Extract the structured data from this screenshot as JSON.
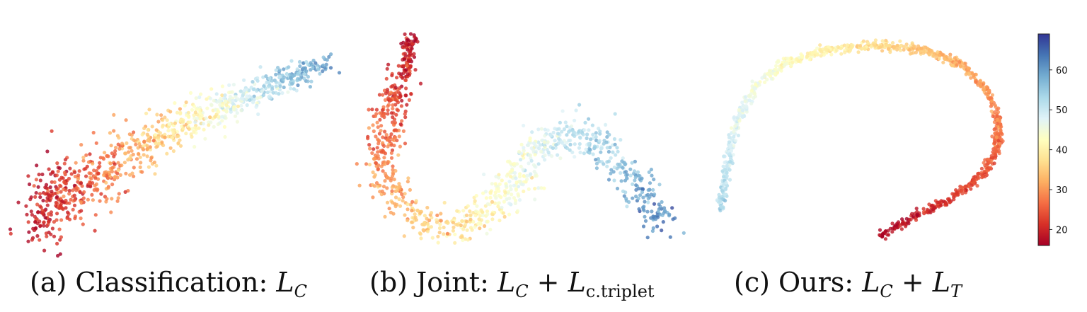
{
  "chart_data": [
    {
      "type": "scatter",
      "title": "(a) Classification: L_C",
      "caption": {
        "prefix": "(a) Classification: ",
        "math_main": "L",
        "math_sub": "C"
      },
      "description": "Embedding points colored by value; dense red cluster lower-left, spreading to blue upper-right",
      "color_range": [
        16,
        69
      ],
      "trend": "diffuse band from low values (lower-left) to high values (upper-right)"
    },
    {
      "type": "scatter",
      "title": "(b) Joint: L_C + L_c.triplet",
      "caption": {
        "prefix": "(b) Joint: ",
        "m1": "L",
        "s1": "C",
        "plus": " + ",
        "m2": "L",
        "s2": "c.triplet"
      },
      "description": "Wavy curve from red (top-left) down and across to blue (lower-right)",
      "color_range": [
        16,
        69
      ],
      "trend": "S-shaped curve with increasing value along the path"
    },
    {
      "type": "scatter",
      "title": "(c) Ours: L_C + L_T",
      "caption": {
        "prefix": "(c) Ours: ",
        "m1": "L",
        "s1": "C",
        "plus": " + ",
        "m2": "L",
        "s2": "T"
      },
      "description": "Thin arc from blue (lower-left) up over top and down to red (lower-right)",
      "color_range": [
        16,
        69
      ],
      "trend": "thin continuous manifold ordered by value"
    }
  ],
  "colorbar": {
    "ticks": [
      "20",
      "30",
      "40",
      "50",
      "60"
    ],
    "tick_values": [
      20,
      30,
      40,
      50,
      60
    ],
    "min": 16,
    "max": 69,
    "colormap": "RdYlBu"
  }
}
